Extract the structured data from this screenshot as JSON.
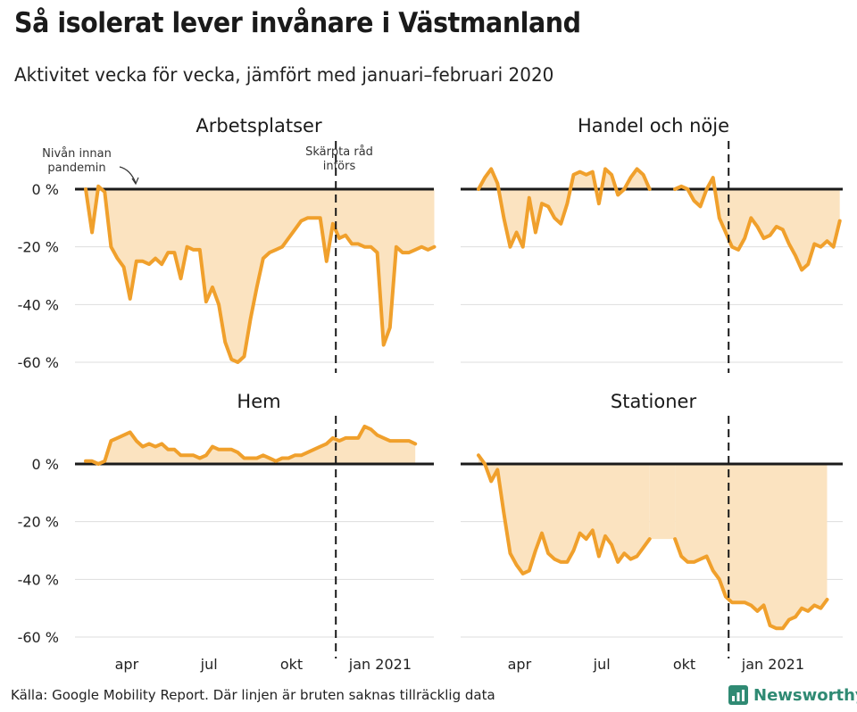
{
  "title": "Så isolerat lever invånare i Västmanland",
  "subtitle": "Aktivitet vecka för vecka, jämfört med januari–februari 2020",
  "source": "Källa: Google Mobility Report. Där linjen är bruten saknas tillräcklig data",
  "brand": {
    "name": "Newsworthy",
    "color": "#2f8a73"
  },
  "colors": {
    "line": "#f0a02c",
    "fill": "#fbe3c0",
    "zero": "#1a1a1a",
    "grid": "#dddddd"
  },
  "chart_data": [
    {
      "type": "area",
      "title": "Arbetsplatser",
      "ylim": [
        -65,
        10
      ],
      "yticks": [
        0,
        -20,
        -40,
        -60
      ],
      "ytick_labels": [
        "0 %",
        "-20 %",
        "-40 %",
        "-60 %"
      ],
      "xticks": [
        {
          "week": 9,
          "label": "apr"
        },
        {
          "week": 22,
          "label": "jul"
        },
        {
          "week": 35,
          "label": "okt"
        },
        {
          "week": 49,
          "label": "jan 2021"
        }
      ],
      "marker_week": 42,
      "annotations": [
        {
          "text_lines": [
            "Nivån innan",
            "pandemin"
          ],
          "arrow": true
        },
        {
          "text_lines": [
            "Skärpta råd",
            "införs"
          ]
        }
      ],
      "segments": [
        [
          [
            0,
            0
          ],
          [
            1,
            -15
          ],
          [
            2,
            1
          ],
          [
            3,
            -1
          ],
          [
            4,
            -20
          ],
          [
            5,
            -24
          ],
          [
            6,
            -27
          ],
          [
            7,
            -38
          ],
          [
            8,
            -25
          ],
          [
            9,
            -25
          ],
          [
            10,
            -26
          ],
          [
            11,
            -24
          ],
          [
            12,
            -26
          ],
          [
            13,
            -22
          ],
          [
            14,
            -22
          ],
          [
            15,
            -31
          ],
          [
            16,
            -20
          ],
          [
            17,
            -21
          ],
          [
            18,
            -21
          ],
          [
            19,
            -39
          ],
          [
            20,
            -34
          ],
          [
            21,
            -40
          ],
          [
            22,
            -53
          ],
          [
            23,
            -59
          ],
          [
            24,
            -60
          ],
          [
            25,
            -58
          ],
          [
            26,
            -45
          ],
          [
            27,
            -34
          ],
          [
            28,
            -24
          ],
          [
            29,
            -22
          ],
          [
            30,
            -21
          ],
          [
            31,
            -20
          ],
          [
            32,
            -17
          ],
          [
            33,
            -14
          ],
          [
            34,
            -11
          ],
          [
            35,
            -10
          ],
          [
            36,
            -10
          ],
          [
            37,
            -10
          ],
          [
            38,
            -25
          ],
          [
            39,
            -12
          ],
          [
            40,
            -17
          ],
          [
            41,
            -16
          ],
          [
            42,
            -19
          ],
          [
            43,
            -19
          ],
          [
            44,
            -20
          ],
          [
            45,
            -20
          ],
          [
            46,
            -22
          ],
          [
            47,
            -54
          ],
          [
            48,
            -48
          ],
          [
            49,
            -20
          ],
          [
            50,
            -22
          ],
          [
            51,
            -22
          ],
          [
            52,
            -21
          ],
          [
            53,
            -20
          ],
          [
            54,
            -21
          ],
          [
            55,
            -20
          ]
        ]
      ]
    },
    {
      "type": "area",
      "title": "Handel och nöje",
      "ylim": [
        -65,
        10
      ],
      "yticks": [
        0,
        -20,
        -40,
        -60
      ],
      "xticks": [
        {
          "week": 9,
          "label": "apr"
        },
        {
          "week": 22,
          "label": "jul"
        },
        {
          "week": 35,
          "label": "okt"
        },
        {
          "week": 49,
          "label": "jan 2021"
        }
      ],
      "marker_week": 42,
      "segments": [
        [
          [
            0,
            0
          ],
          [
            1,
            4
          ],
          [
            2,
            7
          ],
          [
            3,
            2
          ],
          [
            4,
            -10
          ],
          [
            5,
            -20
          ],
          [
            6,
            -15
          ],
          [
            7,
            -20
          ],
          [
            8,
            -3
          ],
          [
            9,
            -15
          ],
          [
            10,
            -5
          ],
          [
            11,
            -6
          ],
          [
            12,
            -10
          ],
          [
            13,
            -12
          ],
          [
            14,
            -5
          ],
          [
            15,
            5
          ],
          [
            16,
            6
          ],
          [
            17,
            5
          ],
          [
            18,
            6
          ],
          [
            19,
            -5
          ],
          [
            20,
            7
          ],
          [
            21,
            5
          ],
          [
            22,
            -2
          ],
          [
            23,
            0
          ],
          [
            24,
            4
          ],
          [
            25,
            7
          ],
          [
            26,
            5
          ],
          [
            27,
            0
          ]
        ],
        [
          [
            31,
            0
          ],
          [
            32,
            1
          ],
          [
            33,
            0
          ],
          [
            34,
            -4
          ],
          [
            35,
            -6
          ],
          [
            36,
            0
          ],
          [
            37,
            4
          ],
          [
            38,
            -10
          ],
          [
            39,
            -15
          ],
          [
            40,
            -20
          ],
          [
            41,
            -21
          ],
          [
            42,
            -17
          ],
          [
            43,
            -10
          ],
          [
            44,
            -13
          ],
          [
            45,
            -17
          ],
          [
            46,
            -16
          ],
          [
            47,
            -13
          ],
          [
            48,
            -14
          ],
          [
            49,
            -19
          ],
          [
            50,
            -23
          ],
          [
            51,
            -28
          ],
          [
            52,
            -26
          ],
          [
            53,
            -19
          ],
          [
            54,
            -20
          ],
          [
            55,
            -18
          ],
          [
            56,
            -20
          ],
          [
            57,
            -11
          ]
        ]
      ]
    },
    {
      "type": "area",
      "title": "Hem",
      "ylim": [
        -65,
        15
      ],
      "yticks": [
        0,
        -20,
        -40,
        -60
      ],
      "ytick_labels": [
        "0 %",
        "-20 %",
        "-40 %",
        "-60 %"
      ],
      "xticks": [
        {
          "week": 9,
          "label": "apr"
        },
        {
          "week": 22,
          "label": "jul"
        },
        {
          "week": 35,
          "label": "okt"
        },
        {
          "week": 49,
          "label": "jan 2021"
        }
      ],
      "marker_week": 42,
      "segments": [
        [
          [
            0,
            1
          ],
          [
            1,
            1
          ],
          [
            2,
            0
          ],
          [
            3,
            1
          ],
          [
            4,
            8
          ],
          [
            5,
            9
          ],
          [
            6,
            10
          ],
          [
            7,
            11
          ],
          [
            8,
            8
          ],
          [
            9,
            6
          ],
          [
            10,
            7
          ],
          [
            11,
            6
          ],
          [
            12,
            7
          ],
          [
            13,
            5
          ],
          [
            14,
            5
          ],
          [
            15,
            3
          ],
          [
            16,
            3
          ],
          [
            17,
            3
          ],
          [
            18,
            2
          ],
          [
            19,
            3
          ],
          [
            20,
            6
          ],
          [
            21,
            5
          ],
          [
            22,
            5
          ],
          [
            23,
            5
          ],
          [
            24,
            4
          ],
          [
            25,
            2
          ],
          [
            26,
            2
          ],
          [
            27,
            2
          ],
          [
            28,
            3
          ],
          [
            29,
            2
          ],
          [
            30,
            1
          ],
          [
            31,
            2
          ],
          [
            32,
            2
          ],
          [
            33,
            3
          ],
          [
            34,
            3
          ],
          [
            35,
            4
          ],
          [
            36,
            5
          ],
          [
            37,
            6
          ],
          [
            38,
            7
          ],
          [
            39,
            9
          ],
          [
            40,
            8
          ],
          [
            41,
            9
          ],
          [
            42,
            9
          ],
          [
            43,
            9
          ],
          [
            44,
            13
          ],
          [
            45,
            12
          ],
          [
            46,
            10
          ],
          [
            47,
            9
          ],
          [
            48,
            8
          ],
          [
            49,
            8
          ],
          [
            50,
            8
          ],
          [
            51,
            8
          ],
          [
            52,
            7
          ]
        ]
      ]
    },
    {
      "type": "area",
      "title": "Stationer",
      "ylim": [
        -65,
        15
      ],
      "yticks": [
        0,
        -20,
        -40,
        -60
      ],
      "xticks": [
        {
          "week": 9,
          "label": "apr"
        },
        {
          "week": 22,
          "label": "jul"
        },
        {
          "week": 35,
          "label": "okt"
        },
        {
          "week": 49,
          "label": "jan 2021"
        }
      ],
      "marker_week": 42,
      "segments": [
        [
          [
            0,
            3
          ],
          [
            1,
            0
          ],
          [
            2,
            -6
          ],
          [
            3,
            -2
          ],
          [
            4,
            -17
          ],
          [
            5,
            -31
          ],
          [
            6,
            -35
          ],
          [
            7,
            -38
          ],
          [
            8,
            -37
          ],
          [
            9,
            -30
          ],
          [
            10,
            -24
          ],
          [
            11,
            -31
          ],
          [
            12,
            -33
          ],
          [
            13,
            -34
          ],
          [
            14,
            -34
          ],
          [
            15,
            -30
          ],
          [
            16,
            -24
          ],
          [
            17,
            -26
          ],
          [
            18,
            -23
          ],
          [
            19,
            -32
          ],
          [
            20,
            -25
          ],
          [
            21,
            -28
          ],
          [
            22,
            -34
          ],
          [
            23,
            -31
          ],
          [
            24,
            -33
          ],
          [
            25,
            -32
          ],
          [
            26,
            -29
          ],
          [
            27,
            -26
          ]
        ],
        [
          [
            31,
            -26
          ],
          [
            32,
            -32
          ],
          [
            33,
            -34
          ],
          [
            34,
            -34
          ],
          [
            35,
            -33
          ],
          [
            36,
            -32
          ],
          [
            37,
            -37
          ],
          [
            38,
            -40
          ],
          [
            39,
            -46
          ],
          [
            40,
            -48
          ],
          [
            41,
            -48
          ],
          [
            42,
            -48
          ],
          [
            43,
            -49
          ],
          [
            44,
            -51
          ],
          [
            45,
            -49
          ],
          [
            46,
            -56
          ],
          [
            47,
            -57
          ],
          [
            48,
            -57
          ],
          [
            49,
            -54
          ],
          [
            50,
            -53
          ],
          [
            51,
            -50
          ],
          [
            52,
            -51
          ],
          [
            53,
            -49
          ],
          [
            54,
            -50
          ],
          [
            55,
            -47
          ]
        ]
      ]
    }
  ]
}
